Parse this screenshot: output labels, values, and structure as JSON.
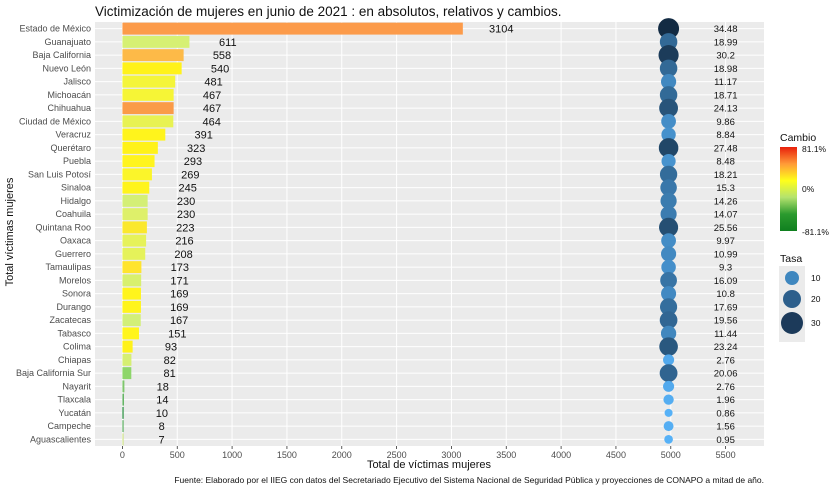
{
  "chart_data": {
    "type": "bar",
    "title": "Victimización de mujeres en junio de 2021 : en absolutos, relativos y cambios.",
    "xlabel": "Total de víctimas mujeres",
    "ylabel": "Total víctimas mujeres",
    "caption": "Fuente: Elaborado por el IIEG con datos del Secretariado Ejecutivo del Sistema Nacional de Seguridad Pública y proyecciones de CONAPO a mitad de año.",
    "xlim": [
      -250,
      5850
    ],
    "xticks": [
      0,
      500,
      1000,
      1500,
      2000,
      2500,
      3000,
      3500,
      4000,
      4500,
      5000,
      5500
    ],
    "states": [
      "Estado de México",
      "Guanajuato",
      "Baja California",
      "Nuevo León",
      "Jalisco",
      "Michoacán",
      "Chihuahua",
      "Ciudad de México",
      "Veracruz",
      "Querétaro",
      "Puebla",
      "San Luis Potosí",
      "Sinaloa",
      "Hidalgo",
      "Coahuila",
      "Quintana Roo",
      "Oaxaca",
      "Guerrero",
      "Tamaulipas",
      "Morelos",
      "Sonora",
      "Durango",
      "Zacatecas",
      "Tabasco",
      "Colima",
      "Chiapas",
      "Baja California Sur",
      "Nayarit",
      "Tlaxcala",
      "Yucatán",
      "Campeche",
      "Aguascalientes"
    ],
    "values": [
      3104,
      611,
      558,
      540,
      481,
      467,
      467,
      464,
      391,
      323,
      293,
      269,
      245,
      230,
      230,
      223,
      216,
      208,
      173,
      171,
      169,
      169,
      167,
      151,
      93,
      82,
      81,
      18,
      14,
      10,
      8,
      7
    ],
    "tasa": [
      "34.48",
      "18.99",
      "30.2",
      "18.98",
      "11.17",
      "18.71",
      "24.13",
      "9.86",
      "8.84",
      "27.48",
      "8.48",
      "18.21",
      "15.3",
      "14.26",
      "14.07",
      "25.56",
      "9.97",
      "10.99",
      "9.3",
      "16.09",
      "10.8",
      "17.69",
      "19.56",
      "11.44",
      "23.24",
      "2.76",
      "20.06",
      "2.76",
      "1.96",
      "0.86",
      "1.56",
      "0.95"
    ],
    "bar_colors": [
      "#fc9b4a",
      "#d6f073",
      "#fdba48",
      "#fff21a",
      "#f4f53a",
      "#f6f536",
      "#fa9b48",
      "#e8f252",
      "#fff41c",
      "#fff219",
      "#fff41e",
      "#fbf52a",
      "#fff41c",
      "#d4ef76",
      "#def06a",
      "#fbe82c",
      "#e6f25a",
      "#e5f25a",
      "#ffe42e",
      "#d8f06e",
      "#fff41c",
      "#fff41c",
      "#d2ef78",
      "#fff51c",
      "#fff21a",
      "#d6ef72",
      "#8ed66a",
      "#7fc66c",
      "#60b260",
      "#238b3a",
      "#5aae60",
      "#cfe388"
    ],
    "point_x": 4980,
    "legend_fill": {
      "title": "Cambio",
      "max_label": "81.1%",
      "mid_label": "0%",
      "min_label": "-81.1%",
      "colors": [
        "#e8200c",
        "#ff9a38",
        "#ffff1a",
        "#b4e26e",
        "#2b9a2e",
        "#0f7f1f"
      ]
    },
    "legend_size": {
      "title": "Tasa",
      "labels": [
        "10",
        "20",
        "30"
      ]
    },
    "point_colors": {
      "low": "#56b1f7",
      "high": "#132b43"
    },
    "panel_bg": "#ebebeb",
    "grid": true,
    "legend_position": "right"
  }
}
